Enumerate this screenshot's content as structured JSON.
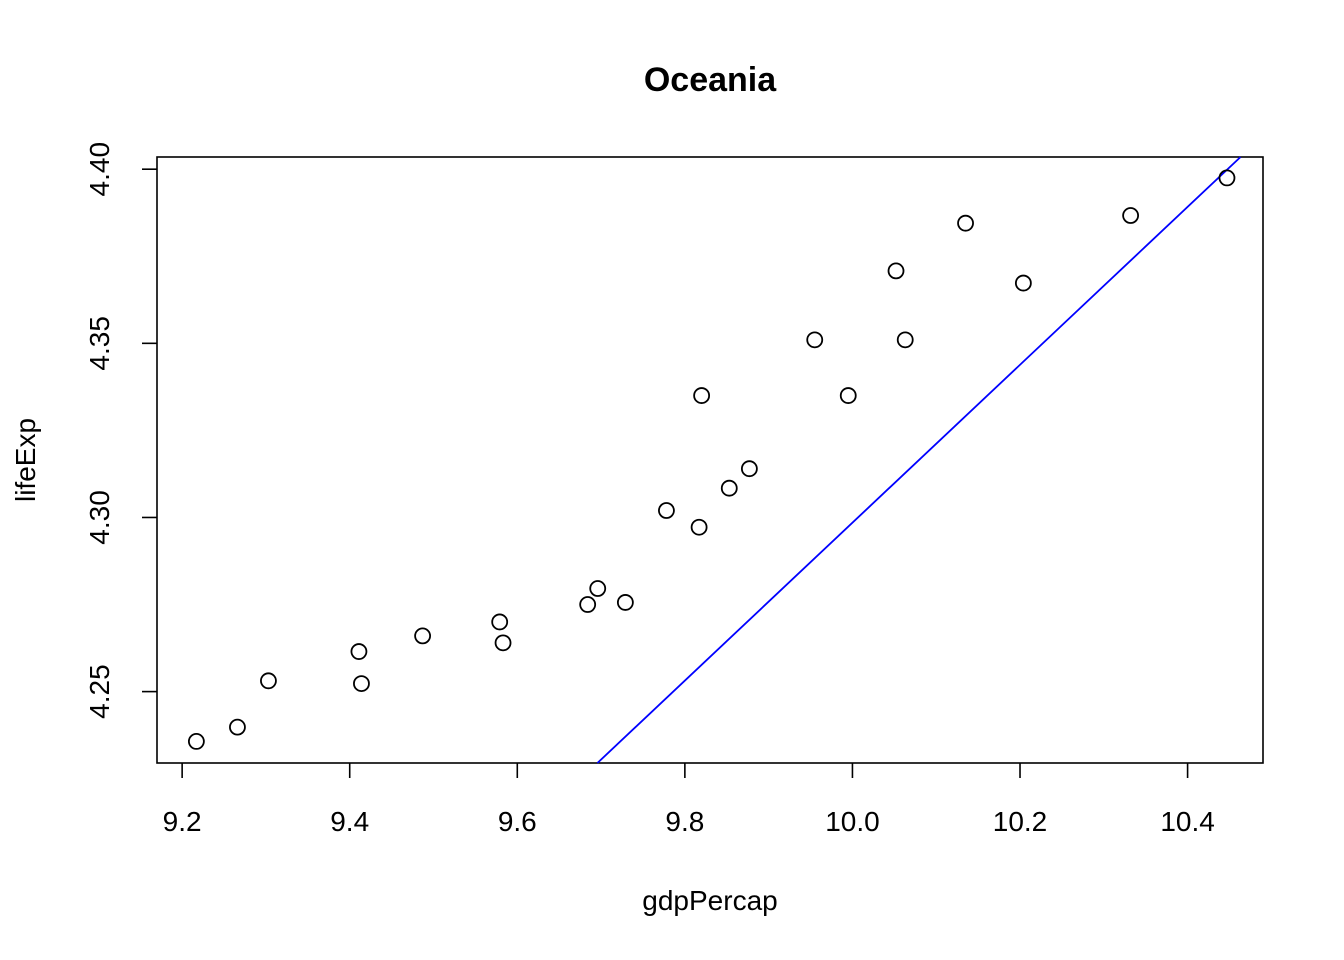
{
  "chart_data": {
    "type": "scatter",
    "title": "Oceania",
    "xlabel": "gdpPercap",
    "ylabel": "lifeExp",
    "xlim": [
      9.17,
      10.49
    ],
    "ylim": [
      4.2295,
      4.4035
    ],
    "xticks": [
      9.2,
      9.4,
      9.6,
      9.8,
      10.0,
      10.2,
      10.4
    ],
    "xtick_labels": [
      "9.2",
      "9.4",
      "9.6",
      "9.8",
      "10.0",
      "10.2",
      "10.4"
    ],
    "yticks": [
      4.25,
      4.3,
      4.35,
      4.4
    ],
    "ytick_labels": [
      "4.25",
      "4.30",
      "4.35",
      "4.40"
    ],
    "grid": false,
    "points": [
      {
        "x": 9.217,
        "y": 4.2357
      },
      {
        "x": 9.266,
        "y": 4.2398
      },
      {
        "x": 9.303,
        "y": 4.2531
      },
      {
        "x": 9.411,
        "y": 4.2615
      },
      {
        "x": 9.414,
        "y": 4.2523
      },
      {
        "x": 9.487,
        "y": 4.266
      },
      {
        "x": 9.579,
        "y": 4.27
      },
      {
        "x": 9.583,
        "y": 4.264
      },
      {
        "x": 9.684,
        "y": 4.275
      },
      {
        "x": 9.696,
        "y": 4.2796
      },
      {
        "x": 9.729,
        "y": 4.2756
      },
      {
        "x": 9.778,
        "y": 4.302
      },
      {
        "x": 9.817,
        "y": 4.2972
      },
      {
        "x": 9.82,
        "y": 4.335
      },
      {
        "x": 9.853,
        "y": 4.3084
      },
      {
        "x": 9.877,
        "y": 4.314
      },
      {
        "x": 9.955,
        "y": 4.351
      },
      {
        "x": 9.995,
        "y": 4.335
      },
      {
        "x": 10.052,
        "y": 4.3708
      },
      {
        "x": 10.063,
        "y": 4.351
      },
      {
        "x": 10.135,
        "y": 4.3845
      },
      {
        "x": 10.204,
        "y": 4.3673
      },
      {
        "x": 10.332,
        "y": 4.3867
      },
      {
        "x": 10.447,
        "y": 4.3975
      }
    ],
    "fit_line": {
      "intercept": 2.0315,
      "slope": 0.2267,
      "color": "#0000ff"
    },
    "point_color": "#000000"
  }
}
